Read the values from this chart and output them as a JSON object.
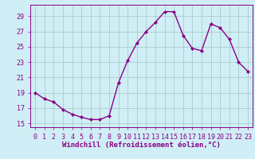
{
  "x": [
    0,
    1,
    2,
    3,
    4,
    5,
    6,
    7,
    8,
    9,
    10,
    11,
    12,
    13,
    14,
    15,
    16,
    17,
    18,
    19,
    20,
    21,
    22,
    23
  ],
  "y": [
    19,
    18.2,
    17.8,
    16.8,
    16.2,
    15.8,
    15.5,
    15.5,
    16.0,
    20.3,
    23.2,
    25.5,
    27.0,
    28.2,
    29.6,
    29.6,
    26.5,
    24.8,
    24.5,
    28.0,
    27.5,
    26.0,
    23.0,
    21.8
  ],
  "ylim": [
    14.5,
    30.5
  ],
  "yticks": [
    15,
    17,
    19,
    21,
    23,
    25,
    27,
    29
  ],
  "xlim": [
    -0.5,
    23.5
  ],
  "xticks": [
    0,
    1,
    2,
    3,
    4,
    5,
    6,
    7,
    8,
    9,
    10,
    11,
    12,
    13,
    14,
    15,
    16,
    17,
    18,
    19,
    20,
    21,
    22,
    23
  ],
  "line_color": "#880088",
  "marker": "D",
  "marker_size": 2.2,
  "line_width": 1.0,
  "bg_color": "#d0eef5",
  "grid_color": "#aacccc",
  "xlabel": "Windchill (Refroidissement éolien,°C)",
  "xlabel_fontsize": 6.5,
  "tick_fontsize": 6.0,
  "fig_width": 3.2,
  "fig_height": 2.0,
  "dpi": 100
}
